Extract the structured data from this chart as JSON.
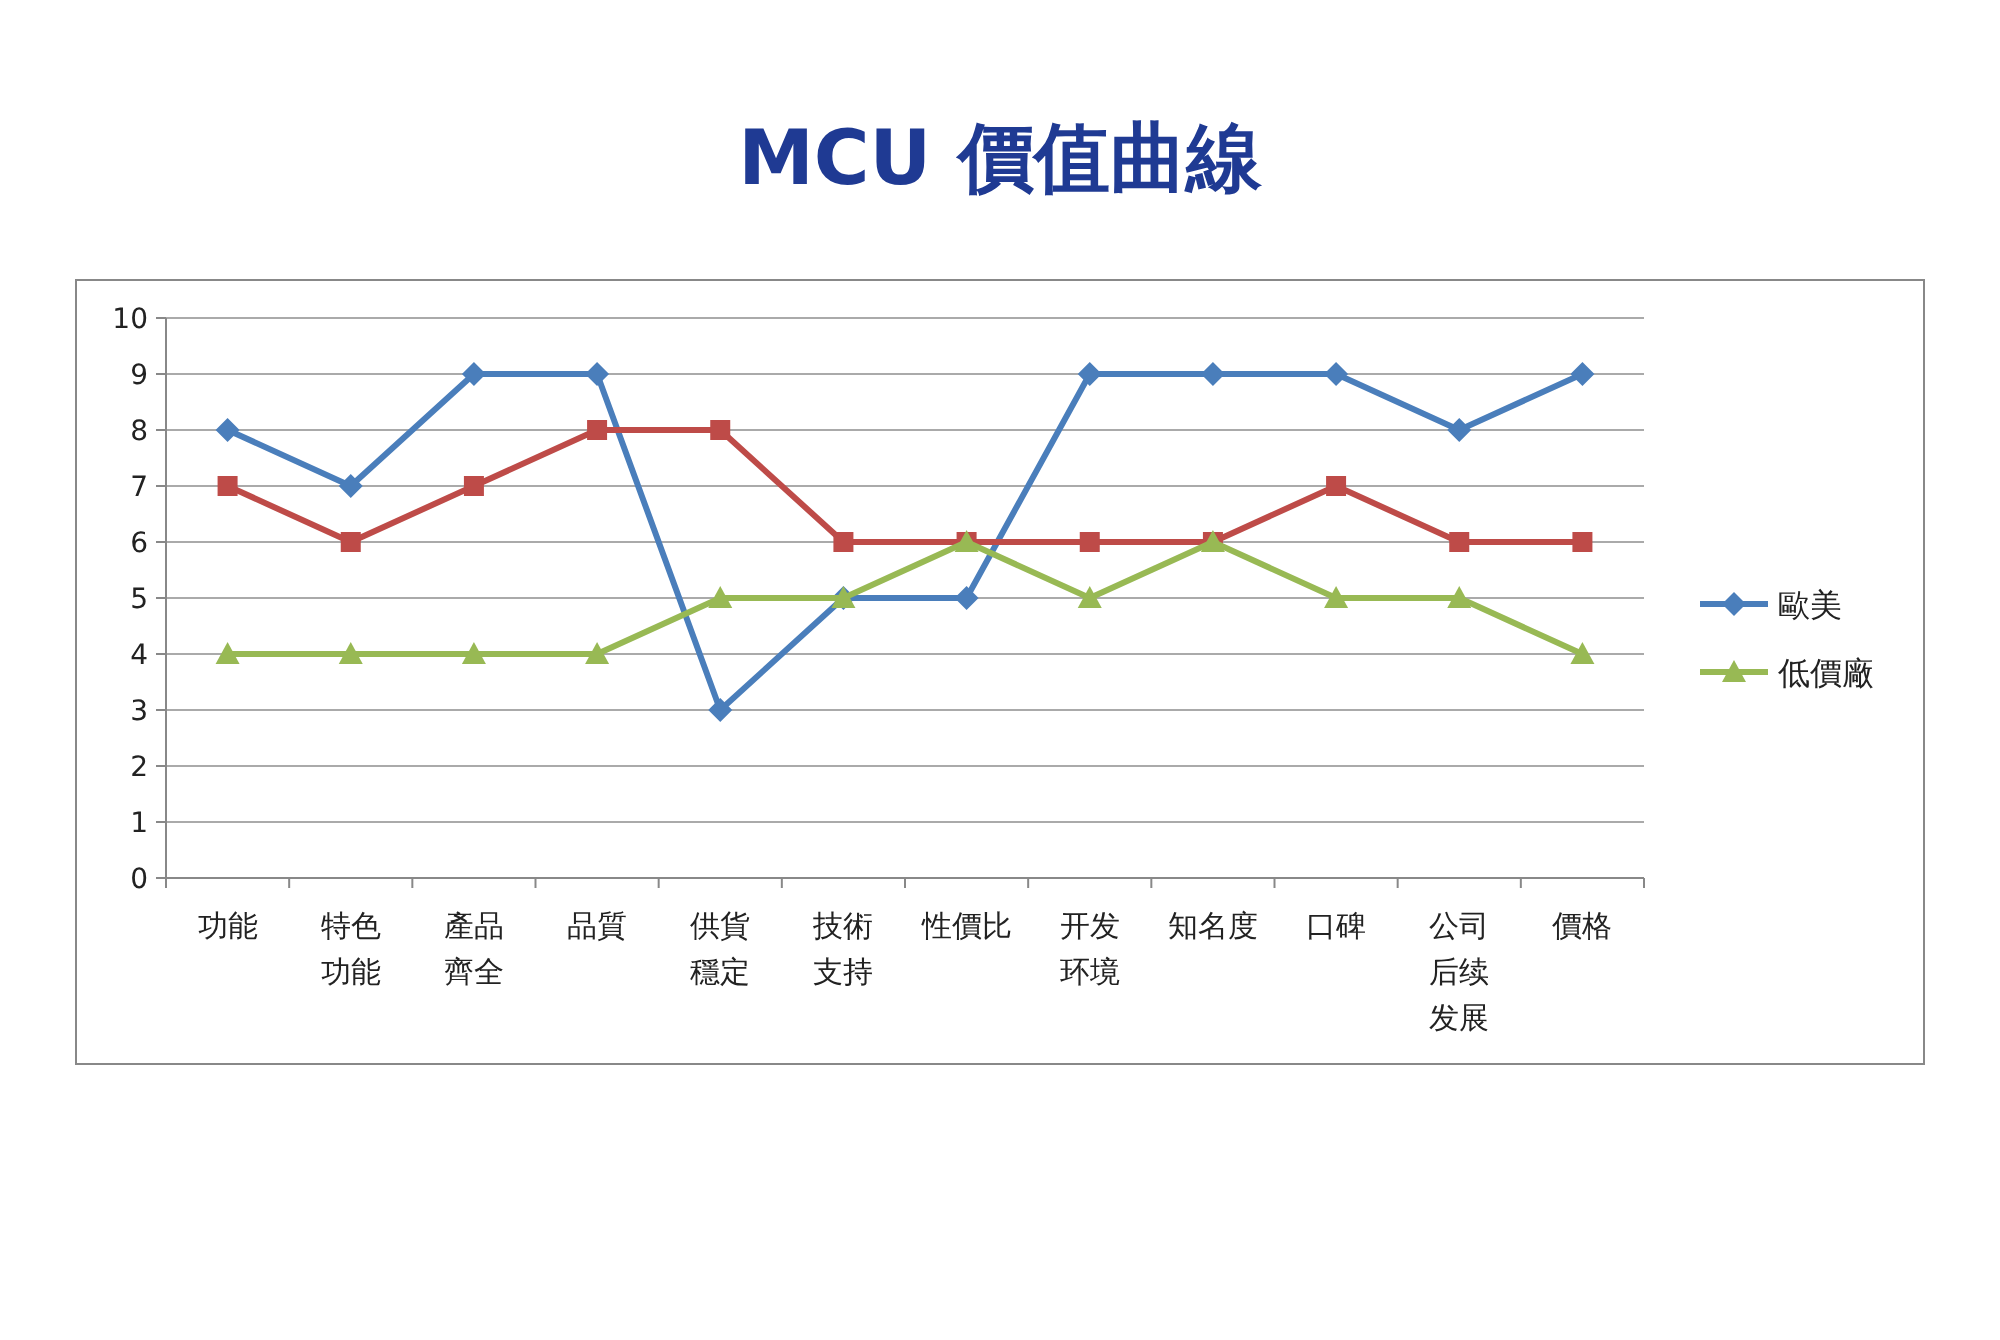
{
  "chart_data": {
    "type": "line",
    "title": "MCU 價值曲線",
    "categories": [
      "功能",
      "特色功能",
      "產品齊全",
      "品質",
      "供貨穩定",
      "技術支持",
      "性價比",
      "开发环境",
      "知名度",
      "口碑",
      "公司后续发展",
      "價格"
    ],
    "series": [
      {
        "name": "歐美",
        "color": "#4a7ebb",
        "marker": "diamond",
        "values": [
          8,
          7,
          9,
          9,
          3,
          5,
          5,
          9,
          9,
          9,
          8,
          9
        ]
      },
      {
        "color": "#be4b48",
        "marker": "square",
        "values": [
          7,
          6,
          7,
          8,
          8,
          6,
          6,
          6,
          6,
          7,
          6,
          6
        ]
      },
      {
        "name": "低價廠",
        "color": "#98b954",
        "marker": "triangle",
        "values": [
          4,
          4,
          4,
          4,
          5,
          5,
          6,
          5,
          6,
          5,
          5,
          4
        ]
      }
    ],
    "ylim": [
      0,
      10
    ],
    "yticks": [
      0,
      1,
      2,
      3,
      4,
      5,
      6,
      7,
      8,
      9,
      10
    ],
    "grid": "y",
    "legend": "right"
  }
}
